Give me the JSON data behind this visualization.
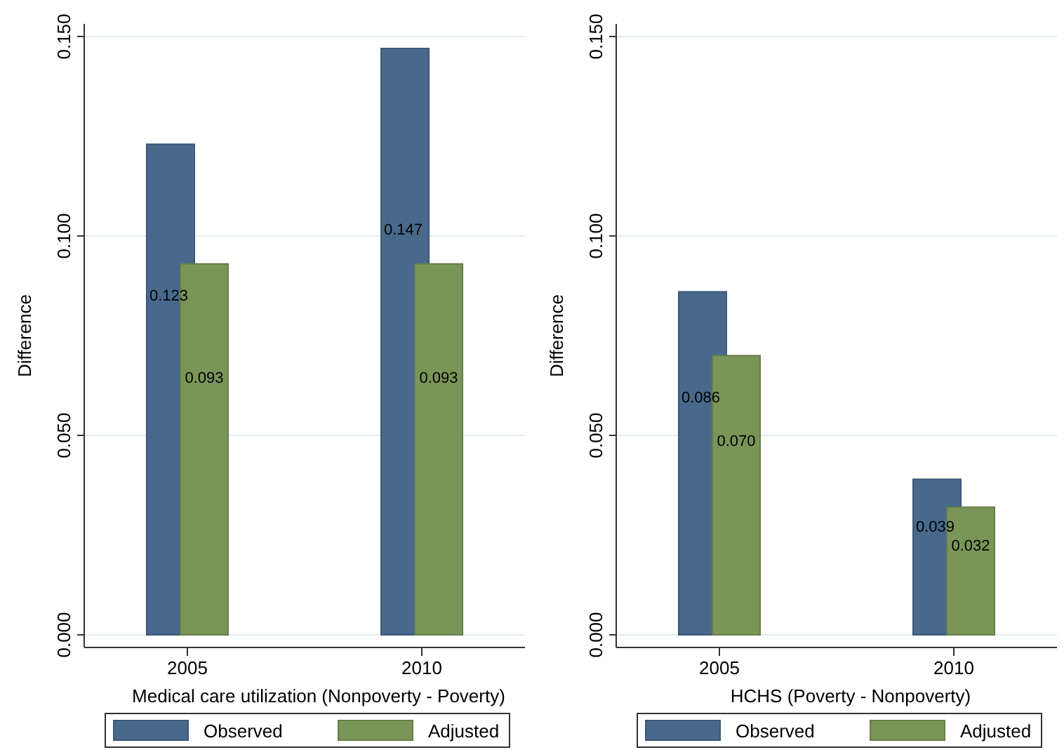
{
  "chart_data": [
    {
      "type": "bar",
      "xlabel": "Medical care utilization (Nonpoverty - Poverty)",
      "ylabel": "Difference",
      "categories": [
        "2005",
        "2010"
      ],
      "series": [
        {
          "name": "Observed",
          "color": "#48698c",
          "values": [
            0.123,
            0.147
          ],
          "value_labels": [
            "0.123",
            "0.147"
          ]
        },
        {
          "name": "Adjusted",
          "color": "#7a9558",
          "values": [
            0.093,
            0.093
          ],
          "value_labels": [
            "0.093",
            "0.093"
          ]
        }
      ],
      "ylim": [
        0,
        0.15
      ],
      "yticks": [
        {
          "value": 0,
          "label": "0.000"
        },
        {
          "value": 0.05,
          "label": "0.050"
        },
        {
          "value": 0.1,
          "label": "0.100"
        },
        {
          "value": 0.15,
          "label": "0.150"
        }
      ],
      "grid": "y",
      "legend": "bottom"
    },
    {
      "type": "bar",
      "xlabel": "HCHS (Poverty - Nonpoverty)",
      "ylabel": "Difference",
      "categories": [
        "2005",
        "2010"
      ],
      "series": [
        {
          "name": "Observed",
          "color": "#48698c",
          "values": [
            0.086,
            0.039
          ],
          "value_labels": [
            "0.086",
            "0.039"
          ]
        },
        {
          "name": "Adjusted",
          "color": "#7a9558",
          "values": [
            0.07,
            0.032
          ],
          "value_labels": [
            "0.070",
            "0.032"
          ]
        }
      ],
      "ylim": [
        0,
        0.15
      ],
      "yticks": [
        {
          "value": 0,
          "label": "0.000"
        },
        {
          "value": 0.05,
          "label": "0.050"
        },
        {
          "value": 0.1,
          "label": "0.100"
        },
        {
          "value": 0.15,
          "label": "0.150"
        }
      ],
      "grid": "y",
      "legend": "bottom"
    }
  ]
}
